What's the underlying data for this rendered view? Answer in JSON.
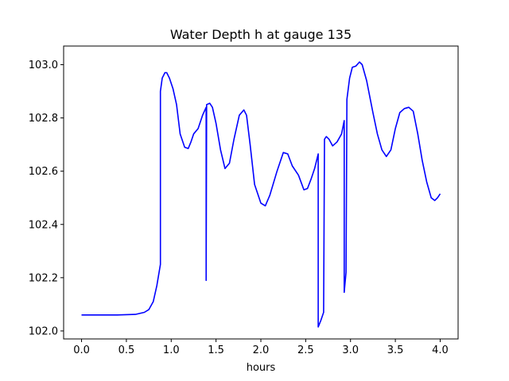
{
  "chart_data": {
    "type": "line",
    "title": "Water Depth h at gauge 135",
    "xlabel": "hours",
    "ylabel": "",
    "xlim": [
      -0.2,
      4.2
    ],
    "ylim": [
      101.97,
      103.07
    ],
    "xticks": [
      0.0,
      0.5,
      1.0,
      1.5,
      2.0,
      2.5,
      3.0,
      3.5,
      4.0
    ],
    "xtick_labels": [
      "0.0",
      "0.5",
      "1.0",
      "1.5",
      "2.0",
      "2.5",
      "3.0",
      "3.5",
      "4.0"
    ],
    "yticks": [
      102.0,
      102.2,
      102.4,
      102.6,
      102.8,
      103.0
    ],
    "ytick_labels": [
      "102.0",
      "102.2",
      "102.4",
      "102.6",
      "102.8",
      "103.0"
    ],
    "grid": false,
    "line_color": "#0000ff",
    "series": [
      {
        "name": "",
        "x": [
          0.0,
          0.2,
          0.4,
          0.6,
          0.7,
          0.75,
          0.8,
          0.84,
          0.88,
          0.88,
          0.9,
          0.93,
          0.95,
          0.98,
          1.02,
          1.06,
          1.1,
          1.15,
          1.19,
          1.22,
          1.25,
          1.3,
          1.35,
          1.39,
          1.39,
          1.395,
          1.43,
          1.46,
          1.5,
          1.55,
          1.6,
          1.65,
          1.7,
          1.76,
          1.81,
          1.84,
          1.88,
          1.93,
          2.0,
          2.05,
          2.1,
          2.18,
          2.25,
          2.3,
          2.35,
          2.42,
          2.48,
          2.52,
          2.56,
          2.6,
          2.64,
          2.64,
          2.67,
          2.7,
          2.71,
          2.73,
          2.76,
          2.8,
          2.85,
          2.9,
          2.93,
          2.93,
          2.95,
          2.96,
          2.99,
          3.02,
          3.06,
          3.1,
          3.13,
          3.18,
          3.25,
          3.3,
          3.35,
          3.4,
          3.45,
          3.5,
          3.55,
          3.6,
          3.65,
          3.7,
          3.75,
          3.8,
          3.85,
          3.9,
          3.94,
          3.97,
          4.0
        ],
        "values": [
          102.06,
          102.06,
          102.06,
          102.062,
          102.07,
          102.08,
          102.11,
          102.17,
          102.25,
          102.9,
          102.95,
          102.97,
          102.97,
          102.95,
          102.91,
          102.85,
          102.74,
          102.69,
          102.685,
          102.71,
          102.74,
          102.76,
          102.81,
          102.84,
          102.19,
          102.85,
          102.855,
          102.84,
          102.78,
          102.68,
          102.61,
          102.63,
          102.72,
          102.81,
          102.83,
          102.81,
          102.7,
          102.55,
          102.48,
          102.47,
          102.51,
          102.6,
          102.67,
          102.665,
          102.62,
          102.585,
          102.53,
          102.535,
          102.57,
          102.61,
          102.665,
          102.015,
          102.04,
          102.07,
          102.72,
          102.73,
          102.72,
          102.695,
          102.71,
          102.74,
          102.79,
          102.145,
          102.22,
          102.87,
          102.95,
          102.99,
          102.995,
          103.01,
          103.0,
          102.94,
          102.82,
          102.74,
          102.68,
          102.655,
          102.68,
          102.76,
          102.82,
          102.835,
          102.84,
          102.825,
          102.74,
          102.64,
          102.56,
          102.5,
          102.49,
          102.5,
          102.515
        ]
      }
    ]
  }
}
